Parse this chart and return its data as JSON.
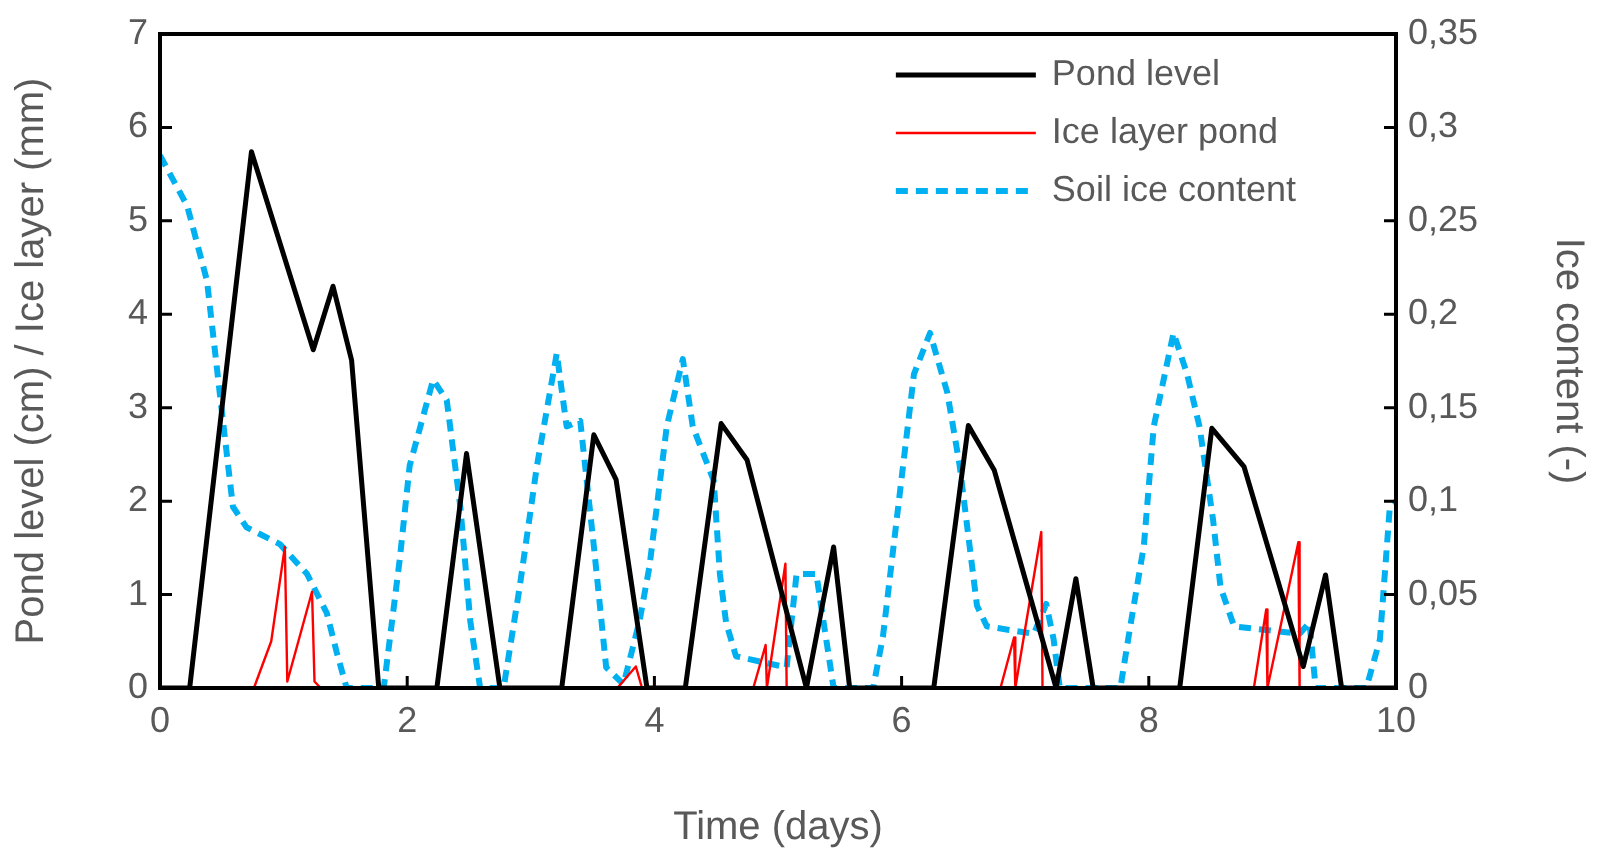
{
  "chart_data": {
    "type": "line",
    "xlabel": "Time (days)",
    "ylabel": "Pond level (cm) / Ice layer (mm)",
    "y2label": "Ice content (-)",
    "xlim": [
      0,
      10
    ],
    "xticks": [
      0,
      2,
      4,
      6,
      8,
      10
    ],
    "ylim": [
      0,
      7
    ],
    "yticks": [
      0,
      1,
      2,
      3,
      4,
      5,
      6,
      7
    ],
    "y2lim": [
      0,
      0.35
    ],
    "y2ticks": [
      {
        "value": 0,
        "label": "0"
      },
      {
        "value": 0.05,
        "label": "0,05"
      },
      {
        "value": 0.1,
        "label": "0,1"
      },
      {
        "value": 0.15,
        "label": "0,15"
      },
      {
        "value": 0.2,
        "label": "0,2"
      },
      {
        "value": 0.25,
        "label": "0,25"
      },
      {
        "value": 0.3,
        "label": "0,3"
      },
      {
        "value": 0.35,
        "label": "0,35"
      }
    ],
    "grid": false,
    "legend": "top right",
    "marker": "none",
    "series": [
      {
        "name": "Pond level",
        "color": "#000000",
        "line_style": "solid",
        "x": [
          0,
          0.24,
          0.74,
          1.24,
          1.4,
          1.55,
          1.77,
          2.24,
          2.48,
          2.75,
          3.25,
          3.51,
          3.69,
          3.94,
          4.25,
          4.54,
          4.75,
          5.23,
          5.45,
          5.58,
          6.26,
          6.54,
          6.75,
          7.25,
          7.41,
          7.55,
          8.25,
          8.51,
          8.77,
          9.25,
          9.43,
          9.56,
          10
        ],
        "values": [
          0,
          0,
          5.74,
          3.62,
          4.3,
          3.51,
          0,
          0,
          2.51,
          0,
          0,
          2.71,
          2.23,
          0,
          0,
          2.83,
          2.44,
          0,
          1.51,
          0,
          0,
          2.81,
          2.33,
          0,
          1.17,
          0,
          0,
          2.78,
          2.37,
          0.23,
          1.21,
          0,
          0
        ]
      },
      {
        "name": "Ice layer pond",
        "color": "#ff0000",
        "line_style": "solid",
        "x": [
          0,
          0.76,
          0.9,
          1.01,
          1.03,
          1.23,
          1.25,
          1.3,
          3.7,
          3.85,
          3.9,
          4.8,
          4.9,
          4.91,
          5.06,
          5.07,
          6.8,
          6.91,
          6.92,
          7.13,
          7.14,
          8.85,
          8.95,
          8.96,
          9.21,
          9.22,
          10
        ],
        "values": [
          0,
          0,
          0.5,
          1.51,
          0.07,
          1.03,
          0.07,
          0,
          0,
          0.23,
          0,
          0,
          0.46,
          0,
          1.33,
          0,
          0,
          0.54,
          0,
          1.67,
          0,
          0,
          0.84,
          0,
          1.56,
          0,
          0
        ]
      },
      {
        "name": "Soil ice content",
        "color": "#00b0f0",
        "line_style": "dashed",
        "axis": "y2",
        "x": [
          0,
          0.22,
          0.38,
          0.49,
          0.59,
          0.7,
          0.97,
          1.19,
          1.35,
          1.43,
          1.51,
          1.81,
          1.94,
          2.02,
          2.21,
          2.32,
          2.43,
          2.51,
          2.59,
          2.78,
          2.91,
          3.05,
          3.21,
          3.29,
          3.4,
          3.51,
          3.61,
          3.75,
          3.88,
          3.96,
          4.1,
          4.23,
          4.31,
          4.48,
          4.53,
          4.58,
          4.66,
          5.07,
          5.15,
          5.31,
          5.39,
          5.45,
          5.77,
          5.85,
          5.96,
          6.1,
          6.23,
          6.37,
          6.47,
          6.55,
          6.61,
          6.69,
          7.07,
          7.17,
          7.23,
          7.28,
          7.77,
          7.85,
          7.96,
          8.04,
          8.2,
          8.31,
          8.41,
          8.52,
          8.58,
          8.69,
          9.22,
          9.3,
          9.35,
          9.76,
          9.87,
          9.95,
          10
        ],
        "values": [
          0.285,
          0.258,
          0.218,
          0.154,
          0.097,
          0.086,
          0.077,
          0.061,
          0.04,
          0.019,
          0,
          0,
          0.069,
          0.119,
          0.165,
          0.154,
          0.097,
          0.036,
          0,
          0,
          0.054,
          0.119,
          0.179,
          0.14,
          0.143,
          0.076,
          0.011,
          0.002,
          0.036,
          0.065,
          0.14,
          0.176,
          0.14,
          0.111,
          0.061,
          0.035,
          0.017,
          0.011,
          0.061,
          0.061,
          0.026,
          0,
          0,
          0.028,
          0.09,
          0.168,
          0.19,
          0.158,
          0.119,
          0.076,
          0.044,
          0.033,
          0.029,
          0.045,
          0.026,
          0,
          0,
          0.033,
          0.076,
          0.14,
          0.19,
          0.168,
          0.14,
          0.09,
          0.054,
          0.033,
          0.029,
          0.035,
          0,
          0,
          0.026,
          0.097,
          0.1
        ]
      }
    ]
  }
}
